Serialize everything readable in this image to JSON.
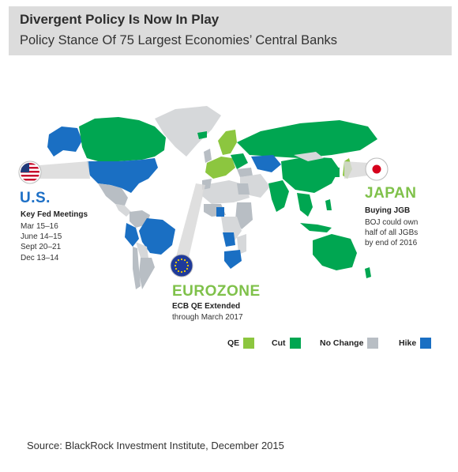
{
  "header": {
    "title": "Divergent Policy Is Now In Play",
    "subtitle": "Policy Stance Of 75 Largest Economies’ Central Banks"
  },
  "callouts": {
    "us": {
      "title": "U.S.",
      "subtitle": "Key Fed Meetings",
      "dates": [
        "Mar 15–16",
        "June 14–15",
        "Sept 20–21",
        "Dec 13–14"
      ],
      "flag": "us-flag-icon"
    },
    "japan": {
      "title": "JAPAN",
      "subtitle": "Buying JGB",
      "lines": [
        "BOJ could own",
        "half of all JGBs",
        "by end of 2016"
      ],
      "flag": "japan-flag-icon"
    },
    "eurozone": {
      "title": "EUROZONE",
      "subtitle": "ECB QE Extended",
      "body": "through March 2017",
      "flag": "eu-flag-icon"
    }
  },
  "legend": [
    {
      "label": "QE",
      "color": "#8cc63f"
    },
    {
      "label": "Cut",
      "color": "#00a651"
    },
    {
      "label": "No Change",
      "color": "#b8bec4"
    },
    {
      "label": "Hike",
      "color": "#1a6fc3"
    }
  ],
  "colors": {
    "qe": "#8cc63f",
    "cut": "#00a651",
    "no_change": "#b8bec4",
    "hike": "#1a6fc3",
    "unmapped": "#d6d8da",
    "us_accent": "#1c6fc6",
    "green_accent": "#7fc14a"
  },
  "source": "Source: BlackRock Investment Institute, December 2015"
}
